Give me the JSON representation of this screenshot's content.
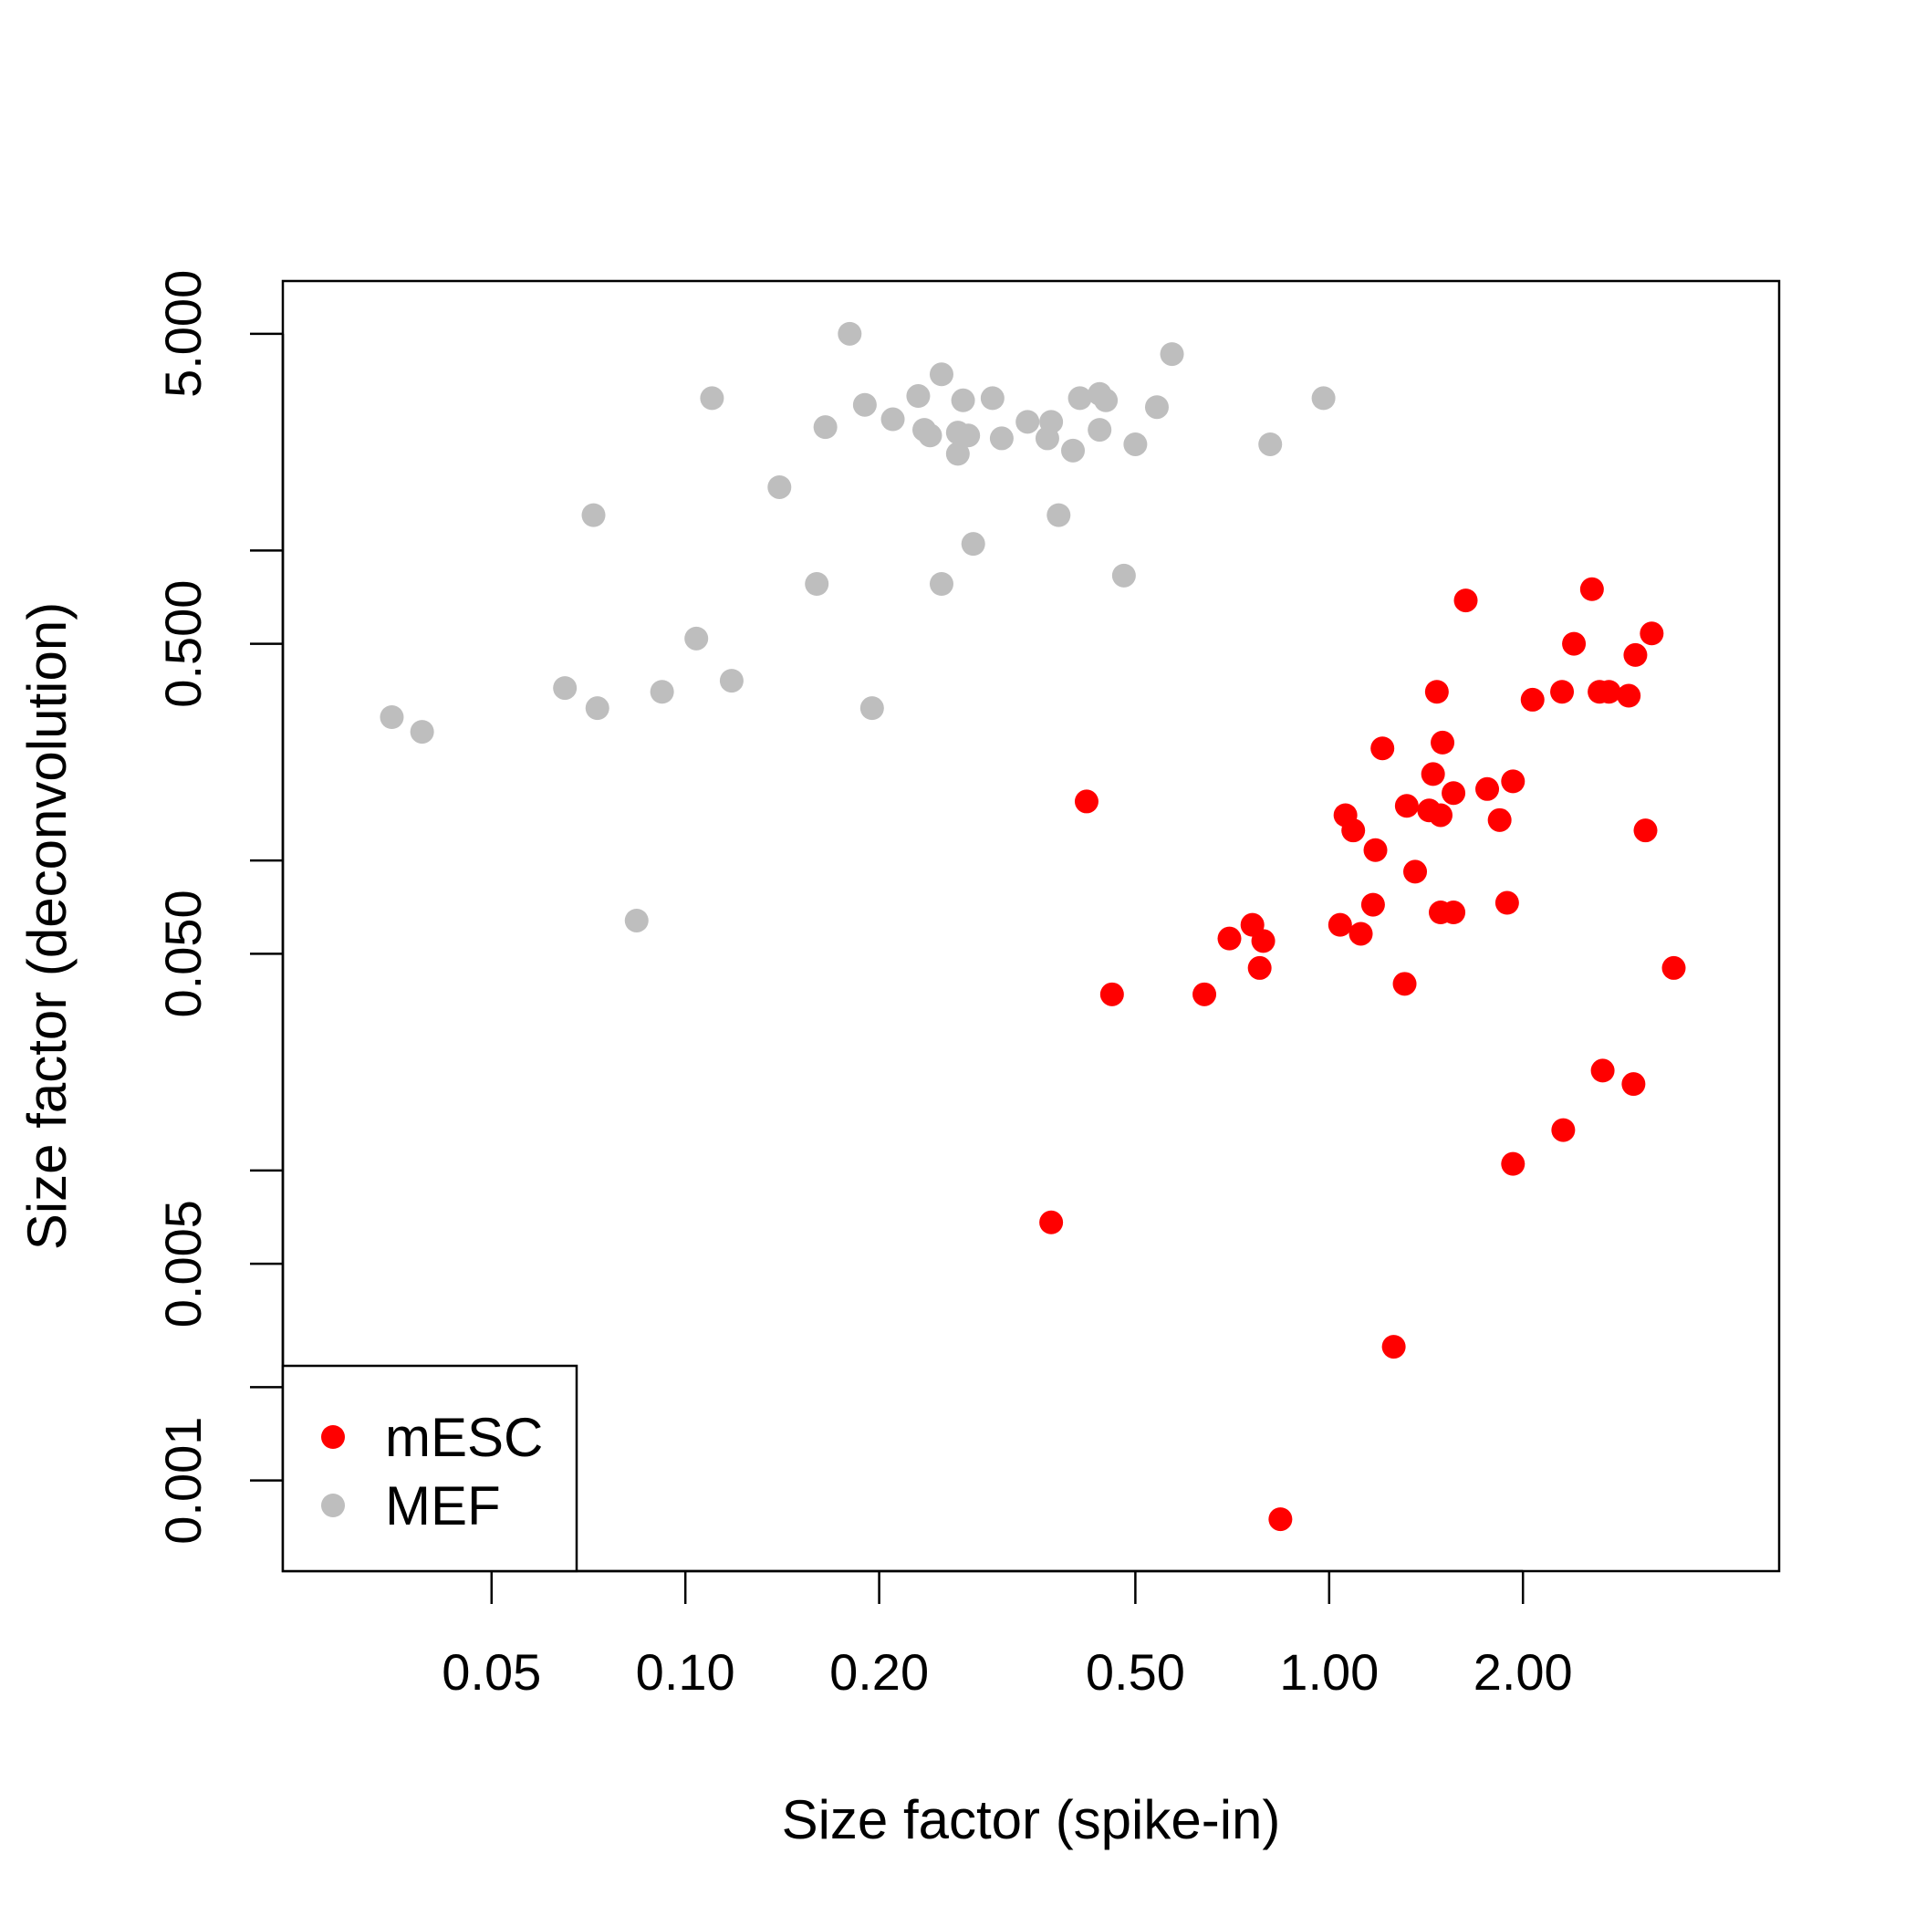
{
  "chart_data": {
    "type": "scatter",
    "title": "",
    "xlabel": "Size factor (spike-in)",
    "ylabel": "Size factor (deconvolution)",
    "x_scale": "log",
    "y_scale": "log",
    "xlim": [
      0.0237,
      5.0
    ],
    "ylim": [
      0.00051,
      7.4
    ],
    "x_ticks": [
      {
        "value": 0.05,
        "label": "0.05"
      },
      {
        "value": 0.1,
        "label": "0.10"
      },
      {
        "value": 0.2,
        "label": "0.20"
      },
      {
        "value": 0.5,
        "label": "0.50"
      },
      {
        "value": 1,
        "label": "1.00"
      },
      {
        "value": 2,
        "label": "2.00"
      }
    ],
    "y_ticks": [
      {
        "value": 0.001,
        "label": "0.001"
      },
      {
        "value": 0.002,
        "label": ""
      },
      {
        "value": 0.005,
        "label": "0.005"
      },
      {
        "value": 0.01,
        "label": ""
      },
      {
        "value": 0.05,
        "label": "0.050"
      },
      {
        "value": 0.1,
        "label": ""
      },
      {
        "value": 0.5,
        "label": "0.500"
      },
      {
        "value": 1,
        "label": ""
      },
      {
        "value": 5,
        "label": "5.000"
      }
    ],
    "grid": false,
    "legend": {
      "placement": "bottom-left"
    },
    "series": [
      {
        "name": "mESC",
        "color": "#ff0000",
        "points": [
          [
            1.63,
            0.69
          ],
          [
            2.56,
            0.75
          ],
          [
            3.17,
            0.54
          ],
          [
            2.4,
            0.5
          ],
          [
            2.99,
            0.46
          ],
          [
            1.47,
            0.35
          ],
          [
            2.3,
            0.35
          ],
          [
            2.63,
            0.35
          ],
          [
            2.72,
            0.35
          ],
          [
            2.92,
            0.34
          ],
          [
            2.07,
            0.33
          ],
          [
            1.5,
            0.24
          ],
          [
            1.21,
            0.23
          ],
          [
            1.45,
            0.19
          ],
          [
            1.93,
            0.18
          ],
          [
            1.76,
            0.17
          ],
          [
            1.56,
            0.165
          ],
          [
            0.42,
            0.155
          ],
          [
            1.32,
            0.15
          ],
          [
            1.43,
            0.145
          ],
          [
            1.49,
            0.14
          ],
          [
            1.06,
            0.14
          ],
          [
            1.84,
            0.135
          ],
          [
            3.1,
            0.125
          ],
          [
            1.09,
            0.125
          ],
          [
            1.18,
            0.108
          ],
          [
            1.36,
            0.092
          ],
          [
            1.17,
            0.072
          ],
          [
            1.89,
            0.073
          ],
          [
            1.49,
            0.068
          ],
          [
            1.56,
            0.068
          ],
          [
            0.76,
            0.062
          ],
          [
            1.04,
            0.062
          ],
          [
            1.12,
            0.058
          ],
          [
            0.7,
            0.056
          ],
          [
            0.79,
            0.055
          ],
          [
            0.78,
            0.045
          ],
          [
            3.43,
            0.045
          ],
          [
            1.31,
            0.04
          ],
          [
            0.64,
            0.037
          ],
          [
            0.46,
            0.037
          ],
          [
            2.66,
            0.021
          ],
          [
            2.97,
            0.019
          ],
          [
            2.31,
            0.0135
          ],
          [
            1.93,
            0.0105
          ],
          [
            0.37,
            0.0068
          ],
          [
            1.26,
            0.0027
          ],
          [
            0.84,
            0.00075
          ]
        ]
      },
      {
        "name": "MEF",
        "color": "#bebebe",
        "points": [
          [
            0.18,
            5.0
          ],
          [
            0.57,
            4.3
          ],
          [
            0.25,
            3.7
          ],
          [
            0.11,
            3.1
          ],
          [
            0.3,
            3.1
          ],
          [
            0.44,
            3.2
          ],
          [
            0.23,
            3.15
          ],
          [
            0.27,
            3.05
          ],
          [
            0.19,
            2.95
          ],
          [
            0.41,
            3.1
          ],
          [
            0.45,
            3.05
          ],
          [
            0.98,
            3.1
          ],
          [
            0.54,
            2.9
          ],
          [
            0.21,
            2.65
          ],
          [
            0.34,
            2.6
          ],
          [
            0.37,
            2.6
          ],
          [
            0.235,
            2.45
          ],
          [
            0.165,
            2.5
          ],
          [
            0.44,
            2.45
          ],
          [
            0.24,
            2.35
          ],
          [
            0.265,
            2.4
          ],
          [
            0.275,
            2.35
          ],
          [
            0.31,
            2.3
          ],
          [
            0.365,
            2.3
          ],
          [
            0.5,
            2.2
          ],
          [
            0.81,
            2.2
          ],
          [
            0.4,
            2.1
          ],
          [
            0.265,
            2.05
          ],
          [
            0.14,
            1.6
          ],
          [
            0.072,
            1.3
          ],
          [
            0.38,
            1.3
          ],
          [
            0.28,
            1.05
          ],
          [
            0.48,
            0.83
          ],
          [
            0.16,
            0.78
          ],
          [
            0.25,
            0.78
          ],
          [
            0.104,
            0.52
          ],
          [
            0.118,
            0.38
          ],
          [
            0.065,
            0.36
          ],
          [
            0.092,
            0.35
          ],
          [
            0.073,
            0.31
          ],
          [
            0.195,
            0.31
          ],
          [
            0.035,
            0.29
          ],
          [
            0.039,
            0.26
          ],
          [
            0.084,
            0.064
          ]
        ]
      }
    ]
  }
}
